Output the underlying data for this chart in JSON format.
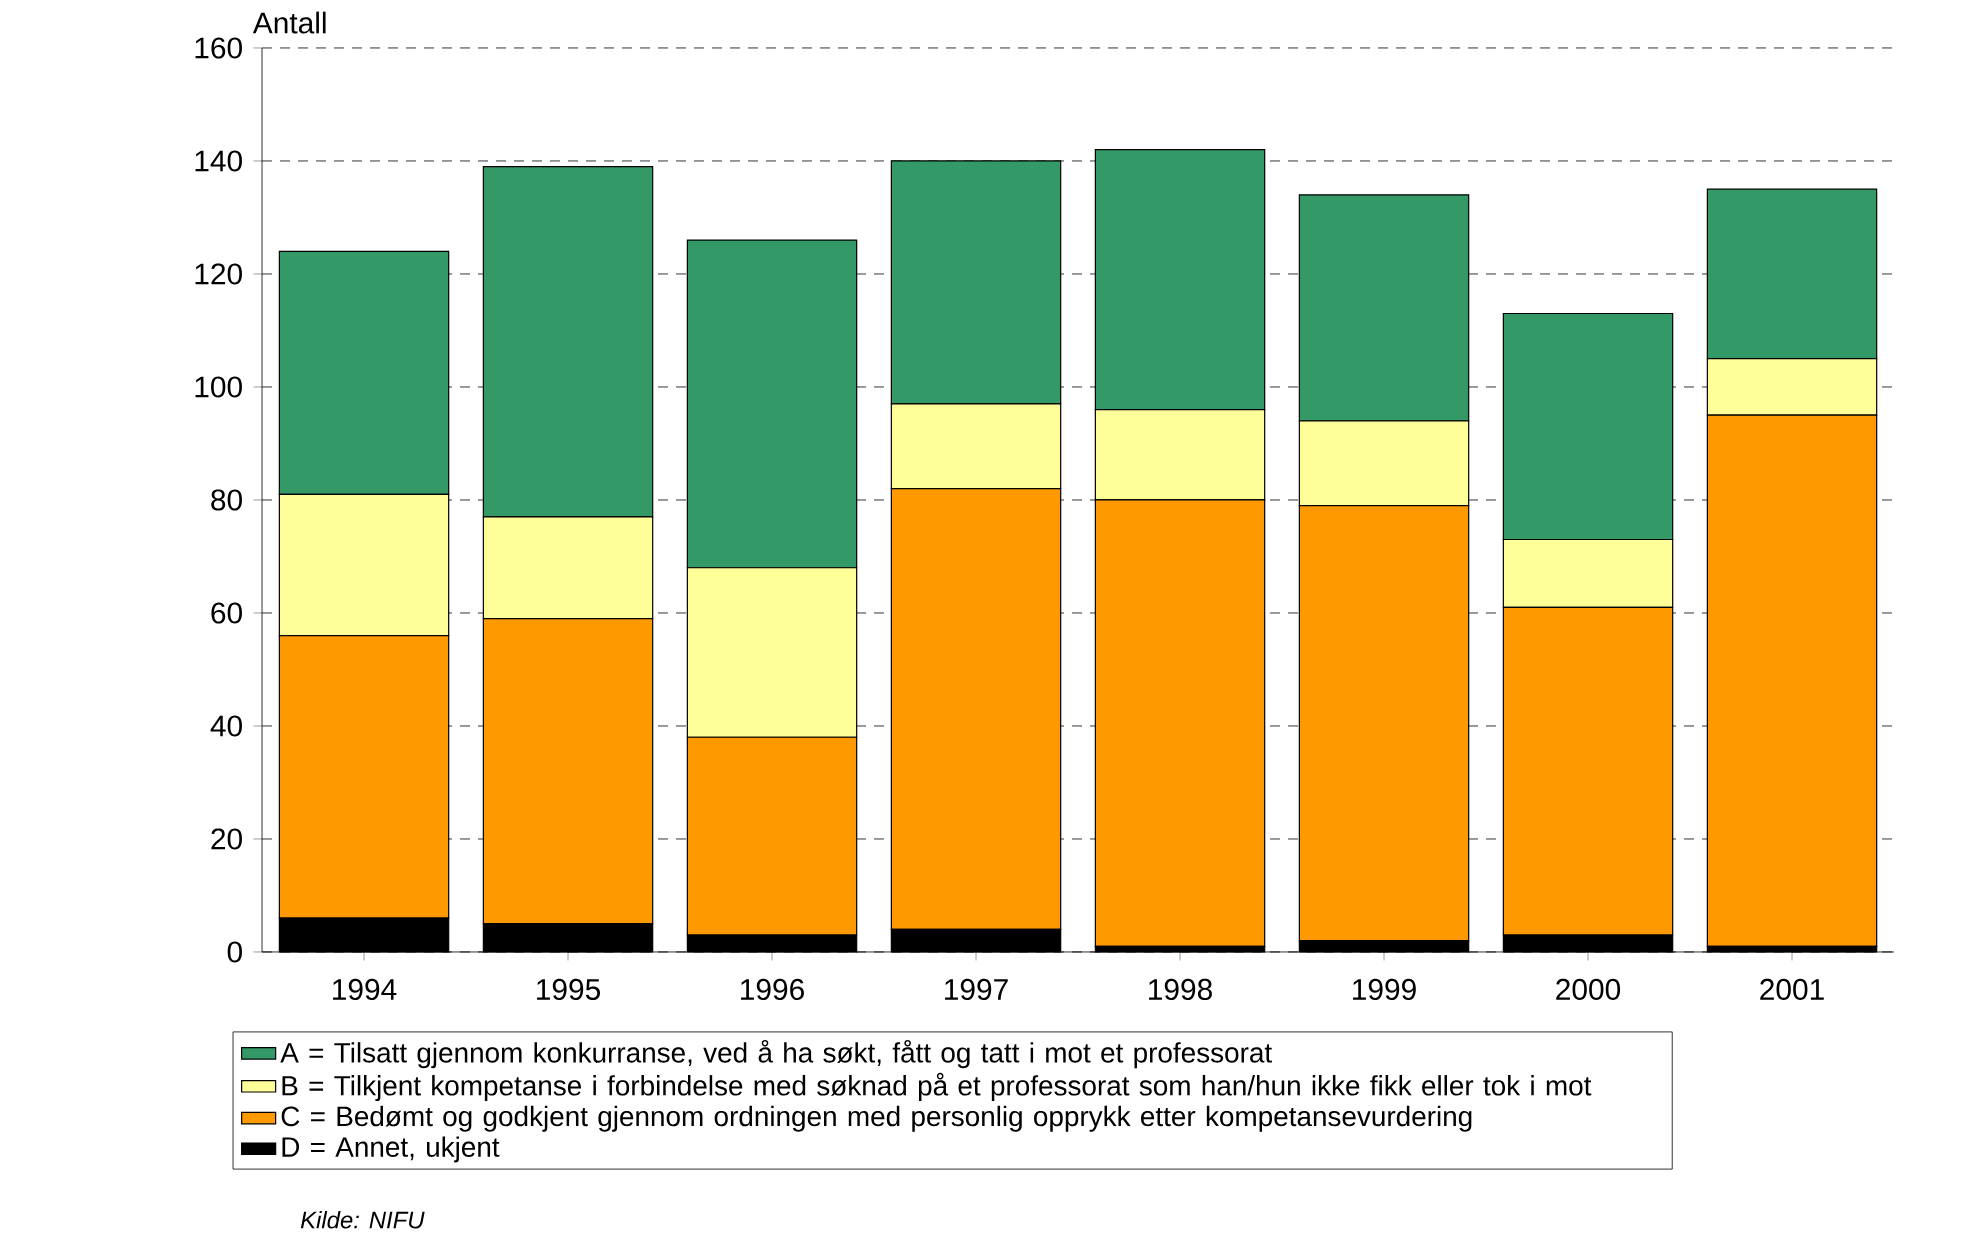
{
  "chart_data": {
    "type": "bar",
    "stacked": true,
    "ylabel": "Antall",
    "categories": [
      "1994",
      "1995",
      "1996",
      "1997",
      "1998",
      "1999",
      "2000",
      "2001"
    ],
    "series": [
      {
        "name": "D = Annet, ukjent",
        "color": "#000000",
        "values": [
          6,
          5,
          3,
          4,
          1,
          2,
          3,
          1
        ]
      },
      {
        "name": "C = Bedømt og godkjent gjennom ordningen med personlig opprykk etter kompetansevurdering",
        "color": "#ff9900",
        "values": [
          50,
          54,
          35,
          78,
          79,
          77,
          58,
          94
        ]
      },
      {
        "name": "B = Tilkjent kompetanse i forbindelse med søknad på et professorat som han/hun ikke fikk eller tok i mot",
        "color": "#ffff99",
        "values": [
          25,
          18,
          30,
          15,
          16,
          15,
          12,
          10
        ]
      },
      {
        "name": "A = Tilsatt gjennom konkurranse, ved å ha søkt, fått og tatt i mot et professorat",
        "color": "#339966",
        "values": [
          43,
          62,
          58,
          43,
          46,
          40,
          40,
          30
        ]
      }
    ],
    "ylim": [
      0,
      160
    ],
    "yticks": [
      0,
      20,
      40,
      60,
      80,
      100,
      120,
      140,
      160
    ],
    "grid": "y",
    "legend": "bottom",
    "annotations": [
      "Kilde: NIFU"
    ]
  }
}
